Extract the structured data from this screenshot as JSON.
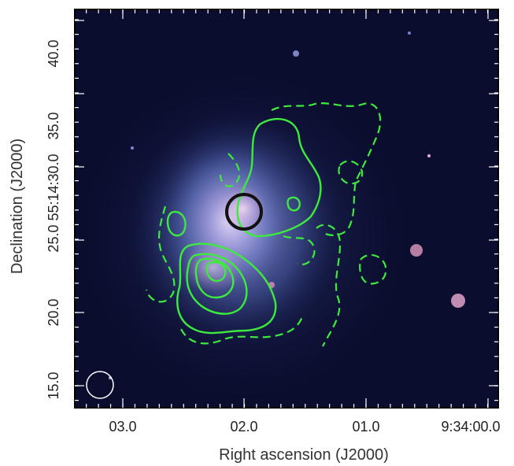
{
  "figure": {
    "xlabel": "Right ascension (J2000)",
    "ylabel": "Declination (J2000)",
    "x_ticks": [
      "03.0",
      "02.0",
      "01.0",
      "9:34:00.0"
    ],
    "y_ticks": [
      "15.0",
      "20.0",
      "25.0 55:14:30.0",
      "35.0",
      "40.0"
    ],
    "colors": {
      "background": "#0b0d2e",
      "galaxy": "#8f97d8",
      "contour": "#3dea3d",
      "marker_circle": "#111111",
      "beam_circle": "#ffffff",
      "frame": "#000000"
    }
  }
}
